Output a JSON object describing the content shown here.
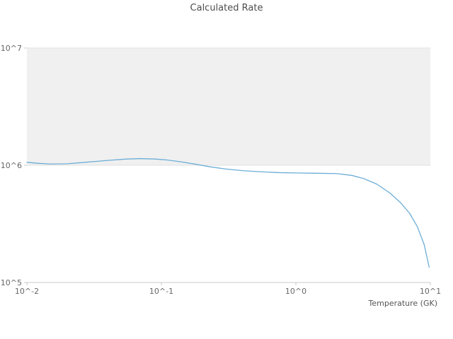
{
  "chart_data": {
    "type": "line",
    "title": "Calculated Rate",
    "xlabel": "Temperature (GK)",
    "ylabel": "",
    "x_scale": "log",
    "y_scale": "log",
    "xlim": [
      0.01,
      10
    ],
    "ylim": [
      100000,
      10000000
    ],
    "x_ticks": [
      0.01,
      0.1,
      1,
      10
    ],
    "x_tick_labels": [
      "10^-2",
      "10^-1",
      "10^0",
      "10^1"
    ],
    "y_ticks": [
      100000,
      1000000,
      10000000
    ],
    "y_tick_labels": [
      "10^5",
      "10^6",
      "10^7"
    ],
    "grid": "horizontal-only",
    "legend": "none",
    "plot_bands": [
      {
        "from": 1000000,
        "to": 10000000,
        "color": "#f0f0f0"
      }
    ],
    "series": [
      {
        "name": "calculated-rate",
        "color": "#6baed6",
        "x": [
          0.01,
          0.012,
          0.015,
          0.02,
          0.03,
          0.04,
          0.055,
          0.07,
          0.09,
          0.11,
          0.14,
          0.18,
          0.23,
          0.3,
          0.4,
          0.55,
          0.75,
          1.0,
          1.4,
          2.0,
          2.6,
          3.2,
          4.0,
          5.0,
          6.0,
          7.0,
          8.0,
          9.0,
          9.8
        ],
        "y": [
          1060000,
          1040000,
          1025000,
          1030000,
          1070000,
          1100000,
          1130000,
          1140000,
          1130000,
          1110000,
          1070000,
          1020000,
          970000,
          930000,
          900000,
          880000,
          865000,
          860000,
          855000,
          850000,
          820000,
          770000,
          690000,
          580000,
          480000,
          390000,
          300000,
          210000,
          135000
        ]
      }
    ]
  },
  "colors": {
    "band": "#f0f0f0",
    "gridline": "#e2e2e2",
    "axis_line": "#c9c9c9",
    "line": "#6baed6"
  }
}
